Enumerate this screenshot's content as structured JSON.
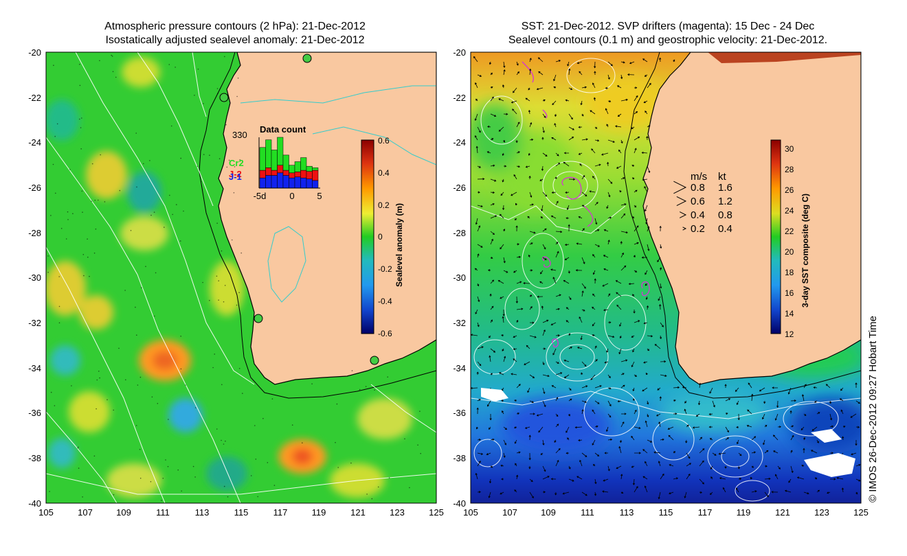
{
  "left_panel": {
    "title_line1": "Atmospheric pressure contours (2 hPa): 21-Dec-2012",
    "title_line2": "Isostatically adjusted sealevel anomaly: 21-Dec-2012",
    "x_ticks": [
      "105",
      "107",
      "109",
      "111",
      "113",
      "115",
      "117",
      "119",
      "121",
      "123",
      "125"
    ],
    "y_ticks": [
      "-20",
      "-22",
      "-24",
      "-26",
      "-28",
      "-30",
      "-32",
      "-34",
      "-36",
      "-38",
      "-40"
    ],
    "colorbar": {
      "label": "Sealevel anomaly (m)",
      "ticks": [
        "0.6",
        "0.4",
        "0.2",
        "0",
        "-0.2",
        "-0.4",
        "-0.6"
      ]
    },
    "inset": {
      "title": "Data count",
      "max_label": "330",
      "x_ticks": [
        "-5d",
        "0",
        "5"
      ],
      "legend": [
        {
          "name": "Cr2",
          "color": "#22dd22"
        },
        {
          "name": "J-2",
          "color": "#ee1111"
        },
        {
          "name": "J-1",
          "color": "#1122ee"
        }
      ],
      "bars": [
        {
          "c": 0.45,
          "r": 0.15,
          "b": 0.2
        },
        {
          "c": 0.55,
          "r": 0.15,
          "b": 0.25
        },
        {
          "c": 0.4,
          "r": 0.1,
          "b": 0.25
        },
        {
          "c": 0.55,
          "r": 0.15,
          "b": 0.3
        },
        {
          "c": 0.3,
          "r": 0.1,
          "b": 0.25
        },
        {
          "c": 0.15,
          "r": 0.1,
          "b": 0.2
        },
        {
          "c": 0.2,
          "r": 0.1,
          "b": 0.22
        },
        {
          "c": 0.25,
          "r": 0.15,
          "b": 0.2
        },
        {
          "c": 0.1,
          "r": 0.15,
          "b": 0.18
        },
        {
          "c": 0.05,
          "r": 0.2,
          "b": 0.15
        }
      ]
    }
  },
  "right_panel": {
    "title_line1": "SST: 21-Dec-2012. SVP drifters (magenta): 15 Dec - 24 Dec",
    "title_line2": "Sealevel contours (0.1 m) and geostrophic velocity: 21-Dec-2012.",
    "x_ticks": [
      "105",
      "107",
      "109",
      "111",
      "113",
      "115",
      "117",
      "119",
      "121",
      "123",
      "125"
    ],
    "y_ticks": [
      "-20",
      "-22",
      "-24",
      "-26",
      "-28",
      "-30",
      "-32",
      "-34",
      "-36",
      "-38",
      "-40"
    ],
    "colorbar": {
      "label": "3-day SST composite (deg C)",
      "ticks": [
        "30",
        "28",
        "26",
        "24",
        "22",
        "20",
        "18",
        "16",
        "14",
        "12"
      ]
    },
    "velocity_legend": {
      "header_ms": "m/s",
      "header_kt": "kt",
      "rows": [
        {
          "ms": "0.8",
          "kt": "1.6",
          "mag": 0.8
        },
        {
          "ms": "0.6",
          "kt": "1.2",
          "mag": 0.6
        },
        {
          "ms": "0.4",
          "kt": "0.8",
          "mag": 0.4
        },
        {
          "ms": "0.2",
          "kt": "0.4",
          "mag": 0.2
        }
      ]
    }
  },
  "credit": "© IMOS 26-Dec-2012 09:27 Hobart Time",
  "colors": {
    "land": "#f9c8a0",
    "coastline": "#000000",
    "pressure_contour": "#ffffff",
    "drifter": "#d633d6",
    "land_contour": "#33cccc"
  }
}
